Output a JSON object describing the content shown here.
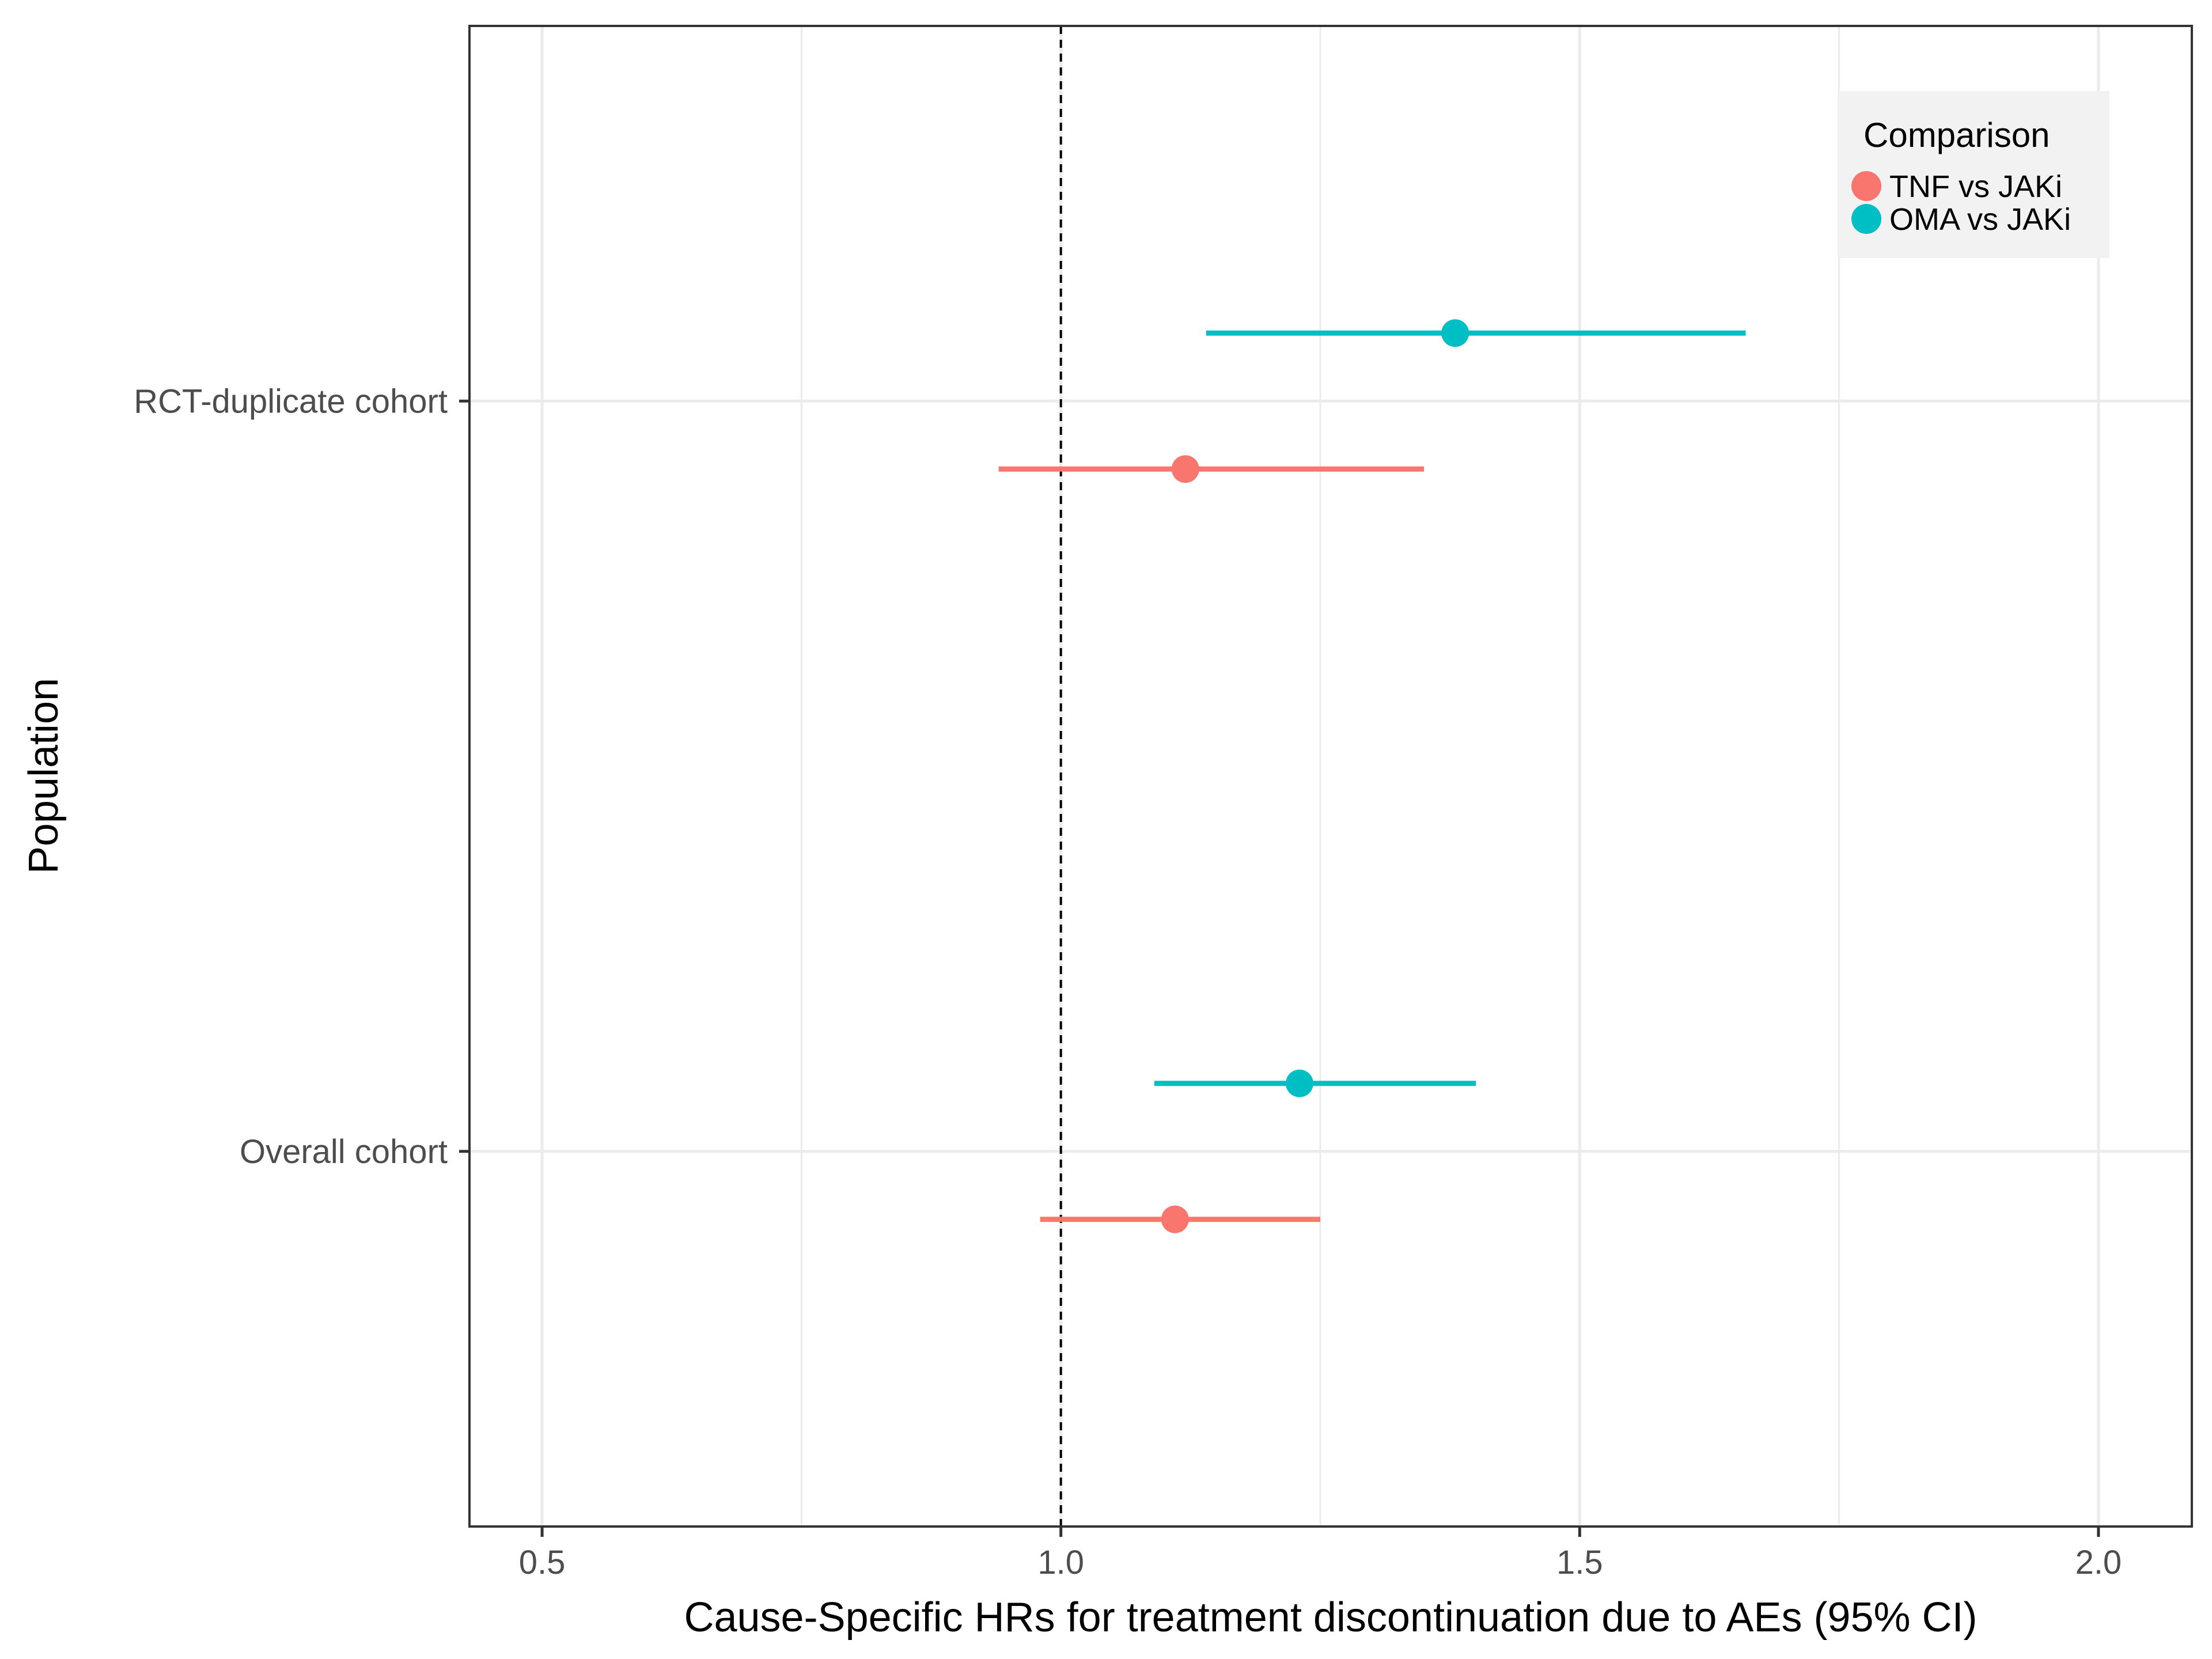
{
  "chart_data": {
    "type": "forest",
    "xlabel": "Cause-Specific HRs for treatment discontinuation due to AEs (95% CI)",
    "ylabel": "Population",
    "xlim": [
      0.43,
      2.09
    ],
    "x_ticks": [
      0.5,
      1.0,
      1.5,
      2.0
    ],
    "x_tick_labels": [
      "0.5",
      "1.0",
      "1.5",
      "2.0"
    ],
    "reference_line": 1.0,
    "grid": true,
    "categories": [
      "Overall cohort",
      "RCT-duplicate cohort"
    ],
    "legend": {
      "title": "Comparison",
      "position": "top-right"
    },
    "series": [
      {
        "name": "TNF vs JAKi",
        "color": "#F8766D",
        "points": [
          {
            "category": "Overall cohort",
            "estimate": 1.11,
            "lower": 0.98,
            "upper": 1.25
          },
          {
            "category": "RCT-duplicate cohort",
            "estimate": 1.12,
            "lower": 0.94,
            "upper": 1.35
          }
        ]
      },
      {
        "name": "OMA vs JAKi",
        "color": "#00BFC4",
        "points": [
          {
            "category": "Overall cohort",
            "estimate": 1.23,
            "lower": 1.09,
            "upper": 1.4
          },
          {
            "category": "RCT-duplicate cohort",
            "estimate": 1.38,
            "lower": 1.14,
            "upper": 1.66
          }
        ]
      }
    ]
  }
}
